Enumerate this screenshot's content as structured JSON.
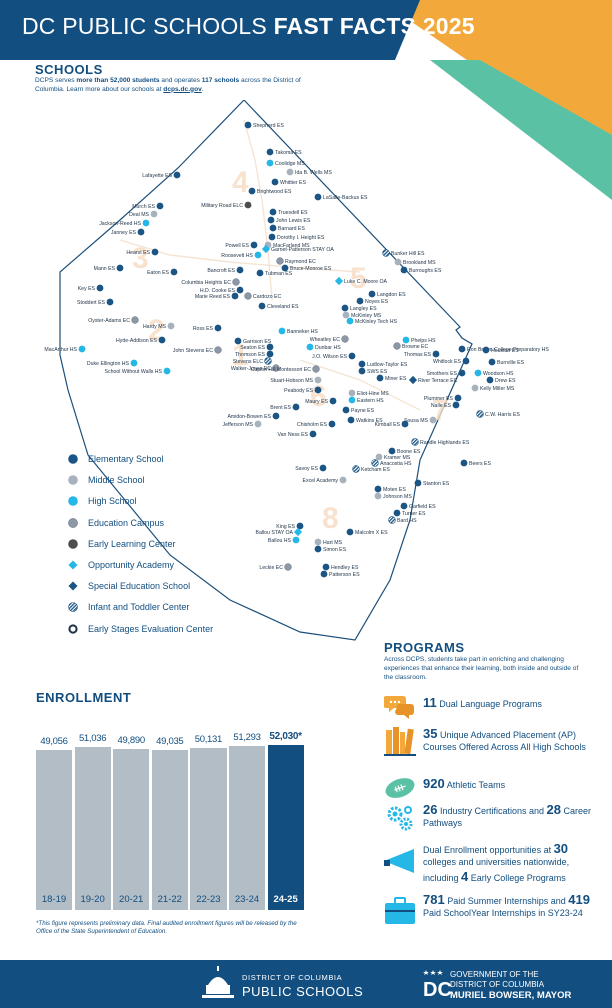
{
  "header": {
    "title_regular": "DC PUBLIC SCHOOLS",
    "title_bold": "FAST FACTS 2025",
    "colors": {
      "blue": "#124e80",
      "orange": "#f3a83c",
      "green": "#5bc1a5"
    }
  },
  "schools": {
    "heading": "SCHOOLS",
    "intro_a": "DCPS serves ",
    "intro_b": "more than 52,000 students",
    "intro_c": " and operates ",
    "intro_d": "117 schools",
    "intro_e": " across the District of Columbia. Learn more about our schools at ",
    "intro_link": "dcps.dc.gov",
    "intro_f": "."
  },
  "map": {
    "ward_numbers": [
      "1",
      "2",
      "3",
      "4",
      "5",
      "6",
      "7",
      "8"
    ],
    "schools": [
      {
        "name": "Shepherd ES",
        "type": "es"
      },
      {
        "name": "Takoma ES",
        "type": "es"
      },
      {
        "name": "Coolidge MS",
        "type": "hs"
      },
      {
        "name": "Ida B. Wells MS",
        "type": "ms"
      },
      {
        "name": "Whittier ES",
        "type": "es"
      },
      {
        "name": "Lafayette ES",
        "type": "es"
      },
      {
        "name": "Brightwood ES",
        "type": "es"
      },
      {
        "name": "LaSalle-Backus ES",
        "type": "es"
      },
      {
        "name": "Murch ES",
        "type": "es"
      },
      {
        "name": "Military Road ELC",
        "type": "elc"
      },
      {
        "name": "Deal MS",
        "type": "ms"
      },
      {
        "name": "Truesdell ES",
        "type": "es"
      },
      {
        "name": "Jackson-Reed HS",
        "type": "hs"
      },
      {
        "name": "John Lewis ES",
        "type": "es"
      },
      {
        "name": "Janney ES",
        "type": "es"
      },
      {
        "name": "Barnard ES",
        "type": "es"
      },
      {
        "name": "Dorothy I. Height ES",
        "type": "es"
      },
      {
        "name": "MacFarland MS",
        "type": "ms"
      },
      {
        "name": "Powell ES",
        "type": "es"
      },
      {
        "name": "Garnet-Patterson STAY OA",
        "type": "oa"
      },
      {
        "name": "Bunker Hill ES",
        "type": "itc"
      },
      {
        "name": "Hearst ES",
        "type": "es"
      },
      {
        "name": "Roosevelt HS",
        "type": "hs"
      },
      {
        "name": "Raymond EC",
        "type": "ec"
      },
      {
        "name": "Brookland MS",
        "type": "ms"
      },
      {
        "name": "Mann ES",
        "type": "es"
      },
      {
        "name": "Eaton ES",
        "type": "es"
      },
      {
        "name": "Bancroft ES",
        "type": "es"
      },
      {
        "name": "Tubman ES",
        "type": "es"
      },
      {
        "name": "Bruce-Monroe ES",
        "type": "es"
      },
      {
        "name": "Burroughs ES",
        "type": "es"
      },
      {
        "name": "Columbia Heights EC",
        "type": "ec"
      },
      {
        "name": "Luke C. Moore OA",
        "type": "oa"
      },
      {
        "name": "H.D. Cooke ES",
        "type": "es"
      },
      {
        "name": "Key ES",
        "type": "es"
      },
      {
        "name": "Marie Reed ES",
        "type": "es"
      },
      {
        "name": "Langdon ES",
        "type": "es"
      },
      {
        "name": "Cardozo EC",
        "type": "ec"
      },
      {
        "name": "Noyes ES",
        "type": "es"
      },
      {
        "name": "Stoddert ES",
        "type": "es"
      },
      {
        "name": "Cleveland ES",
        "type": "es"
      },
      {
        "name": "Langley ES",
        "type": "es"
      },
      {
        "name": "McKinley MS",
        "type": "ms"
      },
      {
        "name": "McKinley Tech HS",
        "type": "hs"
      },
      {
        "name": "Oyster-Adams EC",
        "type": "ec"
      },
      {
        "name": "Hardy MS",
        "type": "ms"
      },
      {
        "name": "Ross ES",
        "type": "es"
      },
      {
        "name": "Banneker HS",
        "type": "hs"
      },
      {
        "name": "Ron Brown College Preparatory HS",
        "type": "es"
      },
      {
        "name": "Hyde-Addison ES",
        "type": "es"
      },
      {
        "name": "Garrison ES",
        "type": "es"
      },
      {
        "name": "Wheatley EC",
        "type": "ec"
      },
      {
        "name": "Phelps HS",
        "type": "hs"
      },
      {
        "name": "Browne EC",
        "type": "ec"
      },
      {
        "name": "Houston ES",
        "type": "es"
      },
      {
        "name": "MacArthur HS",
        "type": "hs"
      },
      {
        "name": "John Stevens EC",
        "type": "ec"
      },
      {
        "name": "Seaton ES",
        "type": "es"
      },
      {
        "name": "Thomas ES",
        "type": "es"
      },
      {
        "name": "Dunbar HS",
        "type": "hs"
      },
      {
        "name": "Whitlock ES",
        "type": "es"
      },
      {
        "name": "Thomson ES",
        "type": "es"
      },
      {
        "name": "Stevens ELC",
        "type": "itc"
      },
      {
        "name": "Duke Ellington HS",
        "type": "hs"
      },
      {
        "name": "J.O. Wilson ES",
        "type": "es"
      },
      {
        "name": "Burrville ES",
        "type": "es"
      },
      {
        "name": "Walker-Jones EC",
        "type": "ec"
      },
      {
        "name": "Ludlow-Taylor ES",
        "type": "es"
      },
      {
        "name": "School Without Walls HS",
        "type": "hs"
      },
      {
        "name": "SWS ES",
        "type": "es"
      },
      {
        "name": "Smothers ES",
        "type": "es"
      },
      {
        "name": "Woodson HS",
        "type": "hs"
      },
      {
        "name": "Capitol Hill Montessori EC",
        "type": "ec"
      },
      {
        "name": "Miner ES",
        "type": "es"
      },
      {
        "name": "River Terrace EC",
        "type": "sped"
      },
      {
        "name": "Stuart-Hobson MS",
        "type": "ms"
      },
      {
        "name": "Drew ES",
        "type": "es"
      },
      {
        "name": "Kelly Miller MS",
        "type": "ms"
      },
      {
        "name": "Peabody ES",
        "type": "es"
      },
      {
        "name": "Eliot-Hine MS",
        "type": "ms"
      },
      {
        "name": "Eastern HS",
        "type": "hs"
      },
      {
        "name": "Plummer ES",
        "type": "es"
      },
      {
        "name": "Brent ES",
        "type": "es"
      },
      {
        "name": "Nalle ES",
        "type": "es"
      },
      {
        "name": "Payne ES",
        "type": "es"
      },
      {
        "name": "Maury ES",
        "type": "es"
      },
      {
        "name": "C.W. Harris ES",
        "type": "itc"
      },
      {
        "name": "Sousa MS",
        "type": "ms"
      },
      {
        "name": "Amidon-Bowen ES",
        "type": "es"
      },
      {
        "name": "Jefferson MS",
        "type": "ms"
      },
      {
        "name": "Chisholm ES",
        "type": "es"
      },
      {
        "name": "Watkins ES",
        "type": "es"
      },
      {
        "name": "Kimball ES",
        "type": "es"
      },
      {
        "name": "Van Ness ES",
        "type": "es"
      },
      {
        "name": "Randle Highlands ES",
        "type": "itc"
      },
      {
        "name": "Boone ES",
        "type": "es"
      },
      {
        "name": "Kramer MS",
        "type": "ms"
      },
      {
        "name": "Anacostia HS",
        "type": "itc"
      },
      {
        "name": "Beers ES",
        "type": "es"
      },
      {
        "name": "Ketcham ES",
        "type": "itc"
      },
      {
        "name": "Savoy ES",
        "type": "es"
      },
      {
        "name": "Excel Academy",
        "type": "ms"
      },
      {
        "name": "Stanton ES",
        "type": "es"
      },
      {
        "name": "Moten ES",
        "type": "es"
      },
      {
        "name": "Johnson MS",
        "type": "ms"
      },
      {
        "name": "Garfield ES",
        "type": "es"
      },
      {
        "name": "Turner ES",
        "type": "es"
      },
      {
        "name": "Bard HS",
        "type": "itc"
      },
      {
        "name": "Malcolm X ES",
        "type": "es"
      },
      {
        "name": "King ES",
        "type": "es"
      },
      {
        "name": "Ballou STAY OA",
        "type": "oa"
      },
      {
        "name": "Hart MS",
        "type": "ms"
      },
      {
        "name": "Ballou HS",
        "type": "hs"
      },
      {
        "name": "Simon ES",
        "type": "es"
      },
      {
        "name": "Leckie EC",
        "type": "ec"
      },
      {
        "name": "Hendley ES",
        "type": "es"
      },
      {
        "name": "Patterson ES",
        "type": "es"
      }
    ]
  },
  "legend": [
    {
      "key": "es",
      "label": "Elementary School",
      "color": "#1b5585"
    },
    {
      "key": "ms",
      "label": "Middle School",
      "color": "#a7b2bd"
    },
    {
      "key": "hs",
      "label": "High School",
      "color": "#25b7e6"
    },
    {
      "key": "ec",
      "label": "Education Campus",
      "color": "#8c98a6"
    },
    {
      "key": "elc",
      "label": "Early Learning Center",
      "color": "#4d4d4d"
    },
    {
      "key": "oa",
      "label": "Opportunity Academy",
      "color": "#25b7e6"
    },
    {
      "key": "sped",
      "label": "Special Education School",
      "color": "#1b5585"
    },
    {
      "key": "itc",
      "label": "Infant and Toddler Center",
      "color": "#1b5585"
    },
    {
      "key": "esec",
      "label": "Early Stages Evaluation Center",
      "color": "#1b5585"
    }
  ],
  "programs": {
    "heading": "PROGRAMS",
    "intro": "Across DCPS, students take part in enriching and challenging experiences that enhance their learning, both inside and outside of the classroom.",
    "items": [
      {
        "num1": "11",
        "text1": " Dual Language Programs",
        "icon": "speech-bubbles-icon"
      },
      {
        "num1": "35",
        "text1": " Unique Advanced Placement (AP) Courses Offered Across All High Schools",
        "icon": "books-icon"
      },
      {
        "num1": "920",
        "text1": " Athletic Teams",
        "icon": "football-icon"
      },
      {
        "num1": "26",
        "text1": " Industry Certifications and ",
        "num2": "28",
        "text2": " Career Pathways",
        "icon": "gears-icon"
      },
      {
        "pre": "Dual Enrollment opportunities at ",
        "num1": "30",
        "text1": " colleges and universities nationwide, including ",
        "num2": "4",
        "text2": " Early College Programs",
        "icon": "megaphone-icon"
      },
      {
        "num1": "781",
        "text1": " Paid Summer Internships and ",
        "num2": "419",
        "text2": " Paid SchoolYear Internships in SY23-24",
        "icon": "briefcase-icon"
      }
    ]
  },
  "enrollment": {
    "heading": "ENROLLMENT",
    "note": "*This figure represents preliminary data. Final audited enrollment figures will be released by the Office of the State Superintendent of Education."
  },
  "chart_data": {
    "type": "bar",
    "categories": [
      "18-19",
      "19-20",
      "20-21",
      "21-22",
      "22-23",
      "23-24",
      "24-25"
    ],
    "values": [
      49056,
      51036,
      49890,
      49035,
      50131,
      51293,
      52030
    ],
    "value_labels": [
      "49,056",
      "51,036",
      "49,890",
      "49,035",
      "50,131",
      "51,293",
      "52,030*"
    ],
    "highlight_index": 6,
    "colors": {
      "bar": "#b3bdc6",
      "highlight": "#124e80"
    }
  },
  "footer": {
    "dcps_line1": "DISTRICT OF COLUMBIA",
    "dcps_line2": "PUBLIC SCHOOLS",
    "gov_line1": "GOVERNMENT OF THE",
    "gov_line2": "DISTRICT OF COLUMBIA",
    "gov_line3": "MURIEL BOWSER, MAYOR"
  }
}
